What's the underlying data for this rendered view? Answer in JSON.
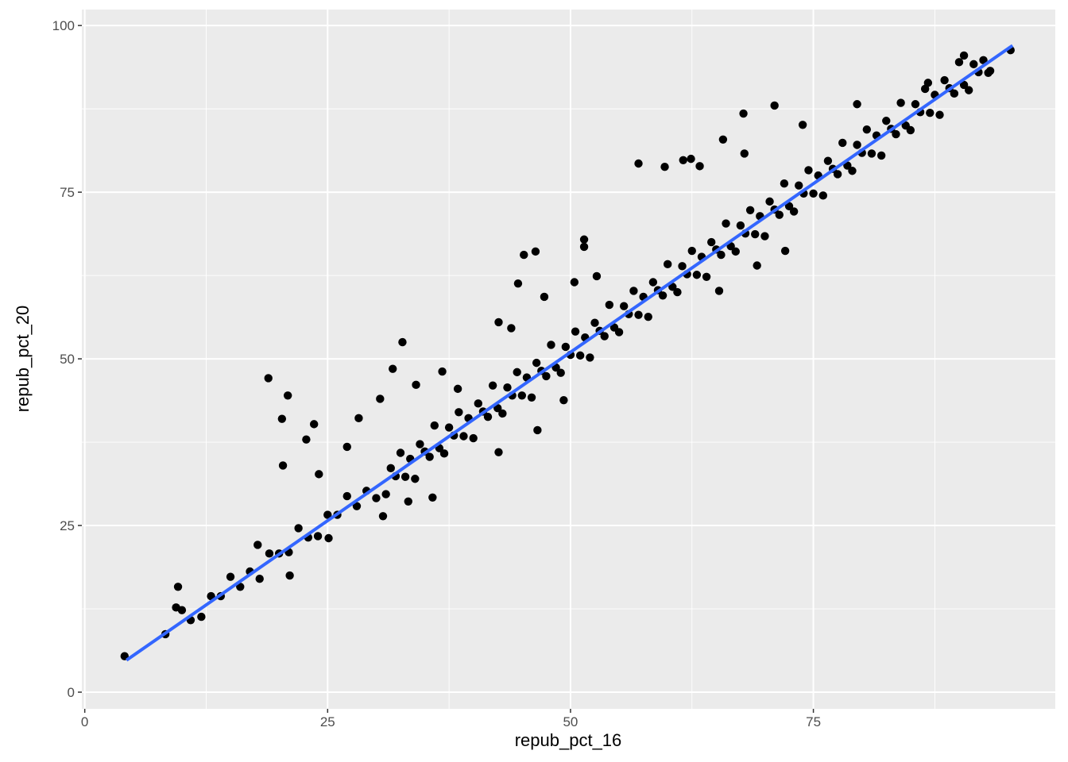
{
  "chart_data": {
    "type": "scatter",
    "title": "",
    "xlabel": "repub_pct_16",
    "ylabel": "repub_pct_20",
    "xlim": [
      -0.3,
      99.9
    ],
    "ylim": [
      -2.5,
      102.4
    ],
    "x_ticks": [
      "0",
      "25",
      "50",
      "75"
    ],
    "x_tick_values": [
      0,
      25,
      50,
      75
    ],
    "y_ticks": [
      "0",
      "25",
      "50",
      "75",
      "100"
    ],
    "y_tick_values": [
      0,
      25,
      50,
      75,
      100
    ],
    "x_minor_grid": [
      12.5,
      37.5,
      62.5,
      87.5
    ],
    "y_minor_grid": [
      12.5,
      37.5,
      62.5,
      87.5
    ],
    "grid": true,
    "legend": "none",
    "colors": {
      "panel": "#EBEBEB",
      "grid": "#FFFFFF",
      "points": "#000000",
      "fit_line": "#3366FF"
    },
    "fit_line": {
      "method": "linear",
      "x": [
        4.3,
        95.5
      ],
      "y": [
        4.8,
        97.0
      ]
    },
    "points": [
      [
        4.1,
        5.4
      ],
      [
        8.3,
        8.7
      ],
      [
        9.6,
        15.8
      ],
      [
        9.4,
        12.7
      ],
      [
        10.0,
        12.3
      ],
      [
        10.9,
        10.8
      ],
      [
        18.9,
        47.1
      ],
      [
        20.9,
        44.5
      ],
      [
        20.3,
        41.0
      ],
      [
        20.4,
        34.0
      ],
      [
        22.8,
        37.9
      ],
      [
        23.6,
        40.2
      ],
      [
        17.8,
        22.1
      ],
      [
        21.1,
        17.5
      ],
      [
        27.0,
        36.8
      ],
      [
        28.2,
        41.1
      ],
      [
        31.7,
        48.5
      ],
      [
        32.7,
        52.5
      ],
      [
        30.4,
        44.0
      ],
      [
        34.1,
        46.1
      ],
      [
        36.8,
        48.1
      ],
      [
        35.8,
        29.2
      ],
      [
        33.3,
        28.6
      ],
      [
        42.6,
        55.5
      ],
      [
        43.9,
        54.6
      ],
      [
        44.6,
        61.3
      ],
      [
        45.2,
        65.6
      ],
      [
        46.4,
        66.1
      ],
      [
        47.3,
        59.3
      ],
      [
        51.4,
        67.9
      ],
      [
        51.4,
        66.8
      ],
      [
        50.4,
        61.5
      ],
      [
        52.7,
        62.4
      ],
      [
        57.0,
        79.3
      ],
      [
        59.7,
        78.8
      ],
      [
        61.6,
        79.8
      ],
      [
        62.4,
        80.0
      ],
      [
        63.3,
        78.9
      ],
      [
        67.8,
        86.8
      ],
      [
        65.7,
        82.9
      ],
      [
        67.9,
        80.8
      ],
      [
        71.0,
        88.0
      ],
      [
        73.9,
        85.1
      ],
      [
        79.5,
        88.2
      ],
      [
        90.5,
        95.5
      ],
      [
        95.3,
        96.3
      ],
      [
        86.8,
        91.4
      ],
      [
        93.2,
        93.2
      ],
      [
        65.3,
        60.2
      ],
      [
        69.2,
        64.0
      ],
      [
        72.1,
        66.2
      ],
      [
        49.3,
        43.8
      ],
      [
        46.6,
        39.3
      ],
      [
        42.6,
        36.0
      ],
      [
        30.7,
        26.4
      ],
      [
        25.1,
        23.1
      ],
      [
        24.1,
        32.7
      ],
      [
        38.4,
        45.5
      ],
      [
        12,
        11.3
      ],
      [
        13,
        14.4
      ],
      [
        14,
        14.4
      ],
      [
        15,
        17.3
      ],
      [
        16,
        15.8
      ],
      [
        17,
        18.1
      ],
      [
        18,
        17.0
      ],
      [
        19,
        20.8
      ],
      [
        20,
        20.8
      ],
      [
        21,
        21.0
      ],
      [
        22,
        24.6
      ],
      [
        23,
        23.2
      ],
      [
        24,
        23.4
      ],
      [
        25,
        26.6
      ],
      [
        26,
        26.6
      ],
      [
        27,
        29.4
      ],
      [
        28,
        27.9
      ],
      [
        29,
        30.2
      ],
      [
        30,
        29.1
      ],
      [
        31,
        29.7
      ],
      [
        31.5,
        33.6
      ],
      [
        32,
        32.4
      ],
      [
        32.5,
        35.9
      ],
      [
        33,
        32.3
      ],
      [
        33.5,
        35.0
      ],
      [
        34,
        32.0
      ],
      [
        34.5,
        37.2
      ],
      [
        35,
        36.1
      ],
      [
        35.5,
        35.3
      ],
      [
        36,
        40.0
      ],
      [
        36.5,
        36.6
      ],
      [
        37,
        35.8
      ],
      [
        37.5,
        39.7
      ],
      [
        38,
        38.5
      ],
      [
        38.5,
        42.0
      ],
      [
        39,
        38.4
      ],
      [
        39.5,
        41.1
      ],
      [
        40,
        38.1
      ],
      [
        40.5,
        43.3
      ],
      [
        41,
        42.1
      ],
      [
        41.5,
        41.3
      ],
      [
        42,
        46.0
      ],
      [
        42.5,
        42.6
      ],
      [
        43,
        41.8
      ],
      [
        43.5,
        45.7
      ],
      [
        44,
        44.5
      ],
      [
        44.5,
        48.0
      ],
      [
        45,
        44.5
      ],
      [
        45.5,
        47.2
      ],
      [
        46,
        44.2
      ],
      [
        46.5,
        49.4
      ],
      [
        47,
        48.2
      ],
      [
        47.5,
        47.4
      ],
      [
        48,
        52.1
      ],
      [
        48.5,
        48.7
      ],
      [
        49,
        47.9
      ],
      [
        49.5,
        51.8
      ],
      [
        50,
        50.6
      ],
      [
        50.5,
        54.1
      ],
      [
        51,
        50.5
      ],
      [
        51.5,
        53.2
      ],
      [
        52,
        50.2
      ],
      [
        52.5,
        55.4
      ],
      [
        53,
        54.2
      ],
      [
        53.5,
        53.4
      ],
      [
        54,
        58.1
      ],
      [
        54.5,
        54.7
      ],
      [
        55,
        54.0
      ],
      [
        55.5,
        57.9
      ],
      [
        56,
        56.7
      ],
      [
        56.5,
        60.2
      ],
      [
        57,
        56.6
      ],
      [
        57.5,
        59.3
      ],
      [
        58,
        56.3
      ],
      [
        58.5,
        61.5
      ],
      [
        59,
        60.3
      ],
      [
        59.5,
        59.5
      ],
      [
        60,
        64.2
      ],
      [
        60.5,
        60.8
      ],
      [
        61,
        60.0
      ],
      [
        61.5,
        63.9
      ],
      [
        62,
        62.7
      ],
      [
        62.5,
        66.2
      ],
      [
        63,
        62.6
      ],
      [
        63.5,
        65.3
      ],
      [
        64,
        62.3
      ],
      [
        64.5,
        67.5
      ],
      [
        65,
        66.4
      ],
      [
        65.5,
        65.6
      ],
      [
        66,
        70.3
      ],
      [
        66.5,
        66.9
      ],
      [
        67,
        66.1
      ],
      [
        67.5,
        70.0
      ],
      [
        68,
        68.8
      ],
      [
        68.5,
        72.3
      ],
      [
        69,
        68.7
      ],
      [
        69.5,
        71.4
      ],
      [
        70,
        68.4
      ],
      [
        70.5,
        73.6
      ],
      [
        71,
        72.4
      ],
      [
        71.5,
        71.6
      ],
      [
        72,
        76.3
      ],
      [
        72.5,
        72.9
      ],
      [
        73,
        72.1
      ],
      [
        73.5,
        76.0
      ],
      [
        74,
        74.8
      ],
      [
        74.5,
        78.3
      ],
      [
        75,
        74.8
      ],
      [
        75.5,
        77.5
      ],
      [
        76,
        74.5
      ],
      [
        76.5,
        79.7
      ],
      [
        77,
        78.5
      ],
      [
        77.5,
        77.7
      ],
      [
        78,
        82.4
      ],
      [
        78.5,
        79.0
      ],
      [
        79,
        78.2
      ],
      [
        79.5,
        82.1
      ],
      [
        80,
        80.9
      ],
      [
        80.5,
        84.4
      ],
      [
        81,
        80.8
      ],
      [
        81.5,
        83.5
      ],
      [
        82,
        80.5
      ],
      [
        82.5,
        85.7
      ],
      [
        83,
        84.5
      ],
      [
        83.5,
        83.7
      ],
      [
        84,
        88.4
      ],
      [
        84.5,
        85.0
      ],
      [
        85,
        84.3
      ],
      [
        85.5,
        88.2
      ],
      [
        86,
        87.0
      ],
      [
        86.5,
        90.5
      ],
      [
        87,
        86.9
      ],
      [
        87.5,
        89.6
      ],
      [
        88,
        86.6
      ],
      [
        88.5,
        91.8
      ],
      [
        89,
        90.6
      ],
      [
        89.5,
        89.8
      ],
      [
        90,
        94.5
      ],
      [
        90.5,
        91.1
      ],
      [
        91,
        90.3
      ],
      [
        91.5,
        94.2
      ],
      [
        92,
        93.0
      ],
      [
        92.5,
        94.8
      ],
      [
        93,
        92.9
      ]
    ]
  }
}
